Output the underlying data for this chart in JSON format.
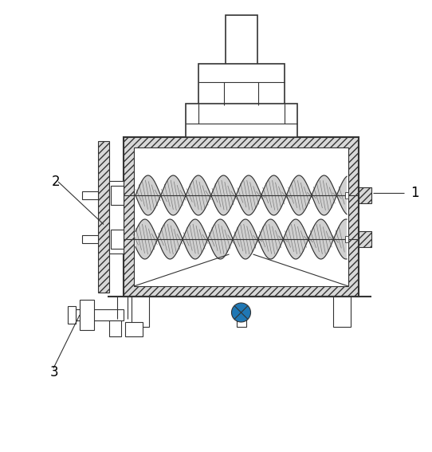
{
  "bg_color": "#ffffff",
  "line_color": "#333333",
  "label_1": "1",
  "label_2": "2",
  "label_3": "3",
  "fig_width": 5.42,
  "fig_height": 5.67,
  "dpi": 100
}
